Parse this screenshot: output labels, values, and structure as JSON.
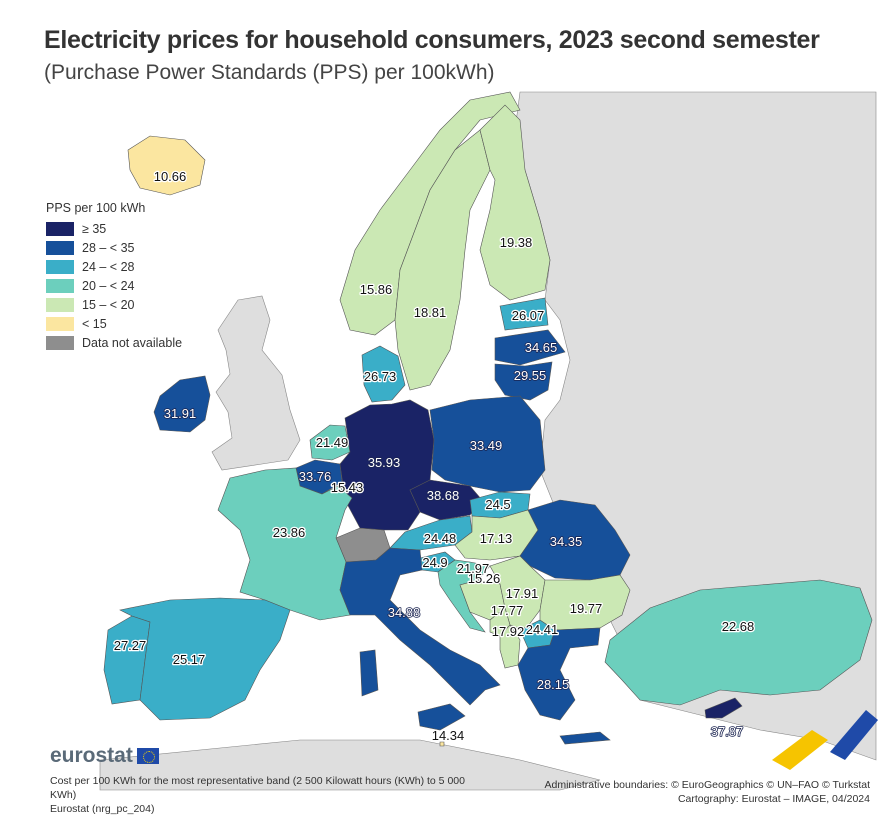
{
  "title": "Electricity prices for household consumers, 2023 second semester",
  "subtitle": "(Purchase Power Standards (PPS) per 100kWh)",
  "legend": {
    "title": "PPS per 100 kWh",
    "items": [
      {
        "label": "≥ 35",
        "color": "#1a2366"
      },
      {
        "label": "28 – < 35",
        "color": "#16509a"
      },
      {
        "label": "24 – < 28",
        "color": "#3aaec8"
      },
      {
        "label": "20 – < 24",
        "color": "#6ccfbd"
      },
      {
        "label": "15 – < 20",
        "color": "#cbe8b4"
      },
      {
        "label": "< 15",
        "color": "#fbe6a0"
      },
      {
        "label": "Data not available",
        "color": "#8e8e8e"
      }
    ]
  },
  "countries": [
    {
      "name": "Iceland",
      "value": "10.66"
    },
    {
      "name": "Norway",
      "value": "15.86"
    },
    {
      "name": "Sweden",
      "value": "18.81"
    },
    {
      "name": "Finland",
      "value": "19.38"
    },
    {
      "name": "Estonia",
      "value": "26.07"
    },
    {
      "name": "Latvia",
      "value": "34.65"
    },
    {
      "name": "Lithuania",
      "value": "29.55"
    },
    {
      "name": "Denmark",
      "value": "26.73"
    },
    {
      "name": "Ireland",
      "value": "31.91"
    },
    {
      "name": "Netherlands",
      "value": "21.49"
    },
    {
      "name": "Germany",
      "value": "35.93"
    },
    {
      "name": "Poland",
      "value": "33.49"
    },
    {
      "name": "Belgium",
      "value": "33.76"
    },
    {
      "name": "Luxembourg",
      "value": "15.43"
    },
    {
      "name": "Czechia",
      "value": "38.68"
    },
    {
      "name": "Slovakia",
      "value": "24.5"
    },
    {
      "name": "France",
      "value": "23.86"
    },
    {
      "name": "Austria",
      "value": "24.48"
    },
    {
      "name": "Hungary",
      "value": "17.13"
    },
    {
      "name": "Romania",
      "value": "34.35"
    },
    {
      "name": "Slovenia",
      "value": "24.9"
    },
    {
      "name": "Croatia",
      "value": "21.97"
    },
    {
      "name": "Bosnia and Herzegovina",
      "value": "15.26"
    },
    {
      "name": "Serbia",
      "value": "17.91"
    },
    {
      "name": "Montenegro",
      "value": "17.77"
    },
    {
      "name": "Albania",
      "value": "17.92"
    },
    {
      "name": "North Macedonia",
      "value": "24.41"
    },
    {
      "name": "Bulgaria",
      "value": "19.77"
    },
    {
      "name": "Türkiye",
      "value": "22.68"
    },
    {
      "name": "Portugal",
      "value": "27.27"
    },
    {
      "name": "Spain",
      "value": "25.17"
    },
    {
      "name": "Italy",
      "value": "34.88"
    },
    {
      "name": "Malta",
      "value": "14.34"
    },
    {
      "name": "Greece",
      "value": "28.15"
    },
    {
      "name": "Cyprus",
      "value": "37.87"
    }
  ],
  "colors": {
    "background_land": "#dedede",
    "border": "#555555"
  },
  "logo": "eurostat",
  "notes_left": [
    "Cost per 100 KWh for the most representative band (2 500 Kilowatt hours (KWh) to 5 000 KWh)",
    "Eurostat (nrg_pc_204)"
  ],
  "notes_right": [
    "Administrative boundaries: © EuroGeographics © UN–FAO © Turkstat",
    "Cartography: Eurostat – IMAGE, 04/2024"
  ]
}
